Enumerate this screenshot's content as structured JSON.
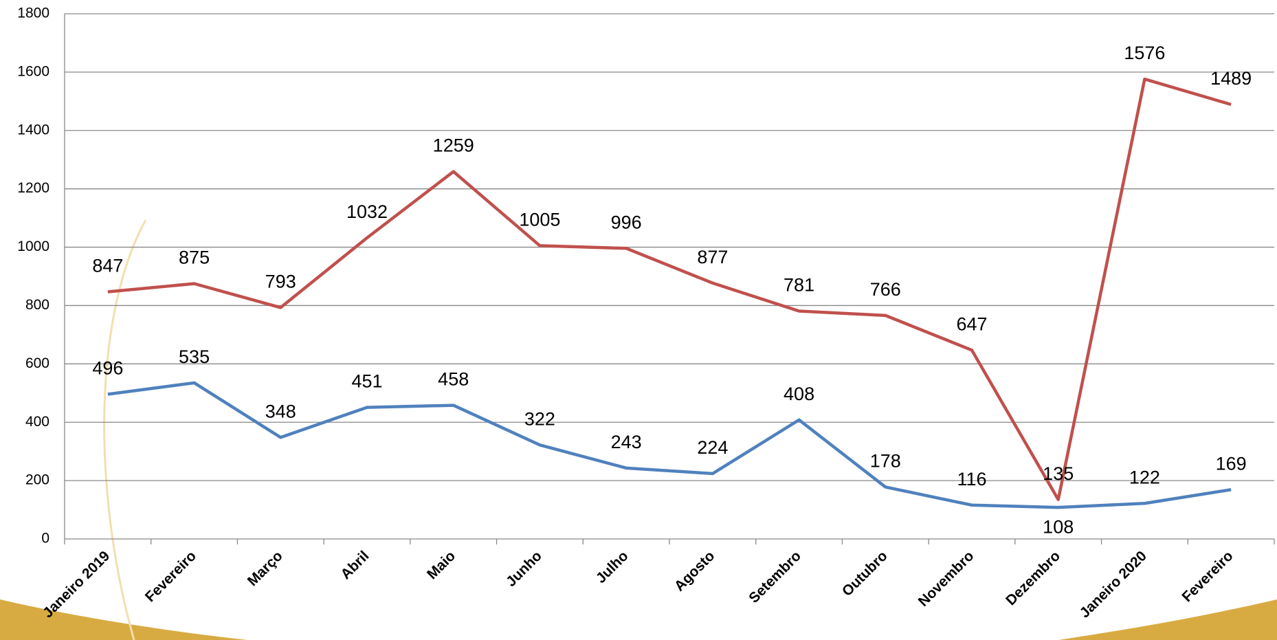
{
  "chart_data": {
    "type": "line",
    "categories": [
      "Janeiro 2019",
      "Fevereiro",
      "Março",
      "Abril",
      "Maio",
      "Junho",
      "Julho",
      "Agosto",
      "Setembro",
      "Outubro",
      "Novembro",
      "Dezembro",
      "Janeiro 2020",
      "Fevereiro"
    ],
    "series": [
      {
        "color": "#c0504d",
        "values": [
          847,
          875,
          793,
          1032,
          1259,
          1005,
          996,
          877,
          781,
          766,
          647,
          135,
          1576,
          1489
        ]
      },
      {
        "color": "#4f81bd",
        "values": [
          496,
          535,
          348,
          451,
          458,
          322,
          243,
          224,
          408,
          178,
          116,
          108,
          122,
          169
        ]
      }
    ],
    "ylim": [
      0,
      1800
    ],
    "yticks": [
      0,
      200,
      400,
      600,
      800,
      1000,
      1200,
      1400,
      1600,
      1800
    ],
    "grid": true
  }
}
